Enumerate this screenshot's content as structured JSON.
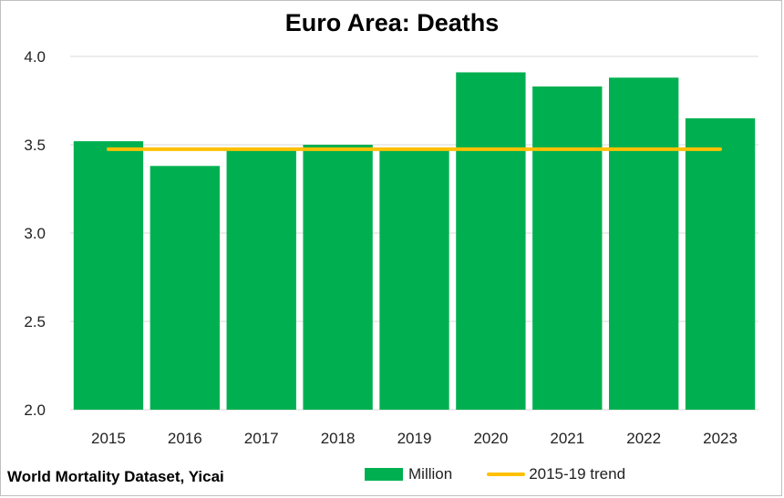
{
  "chart_data": {
    "type": "bar",
    "title": "Euro Area: Deaths",
    "categories": [
      "2015",
      "2016",
      "2017",
      "2018",
      "2019",
      "2020",
      "2021",
      "2022",
      "2023"
    ],
    "series": [
      {
        "name": "Million",
        "type": "bar",
        "color": "#00b050",
        "values": [
          3.52,
          3.38,
          3.48,
          3.5,
          3.48,
          3.91,
          3.83,
          3.88,
          3.65
        ]
      },
      {
        "name": "2015-19 trend",
        "type": "line",
        "color": "#ffc000",
        "values": [
          3.475,
          3.475,
          3.475,
          3.475,
          3.475,
          3.475,
          3.475,
          3.475,
          3.475
        ]
      }
    ],
    "ylim": [
      2.0,
      4.0
    ],
    "yticks": [
      "2.0",
      "2.5",
      "3.0",
      "3.5",
      "4.0"
    ],
    "grid": true,
    "legend_position": "bottom",
    "source": "World Mortality Dataset, Yicai"
  }
}
